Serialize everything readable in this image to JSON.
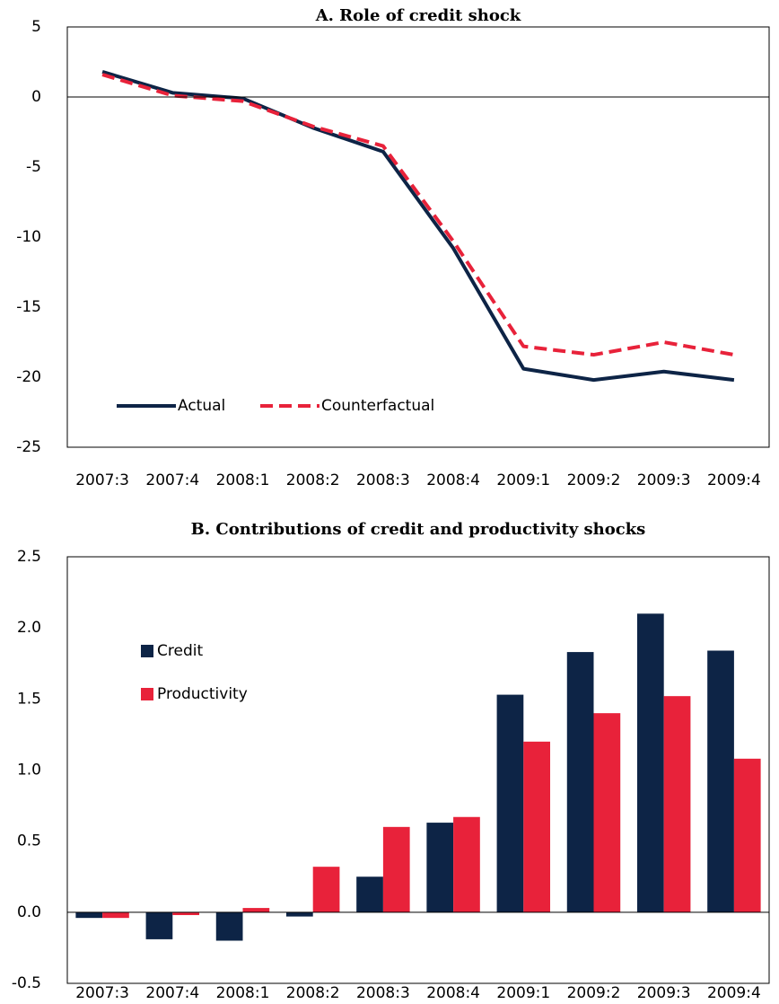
{
  "chart_data": [
    {
      "type": "line",
      "title": "A. Role of credit shock",
      "categories": [
        "2007:3",
        "2007:4",
        "2008:1",
        "2008:2",
        "2008:3",
        "2008:4",
        "2009:1",
        "2009:2",
        "2009:3",
        "2009:4"
      ],
      "series": [
        {
          "name": "Actual",
          "color": "#0d2446",
          "values": [
            1.8,
            0.3,
            -0.1,
            -2.2,
            -3.9,
            -10.8,
            -19.4,
            -20.2,
            -19.6,
            -20.2
          ]
        },
        {
          "name": "Counterfactual",
          "color": "#e8223a",
          "dashed": true,
          "values": [
            1.6,
            0.1,
            -0.3,
            -2.1,
            -3.5,
            -10.3,
            -17.8,
            -18.4,
            -17.5,
            -18.4
          ]
        }
      ],
      "ylim": [
        -25,
        5
      ],
      "yticks": [
        -25,
        -20,
        -15,
        -10,
        -5,
        0,
        5
      ],
      "grid": false,
      "legend": "lower left"
    },
    {
      "type": "bar",
      "title": "B. Contributions of credit and productivity shocks",
      "categories": [
        "2007:3",
        "2007:4",
        "2008:1",
        "2008:2",
        "2008:3",
        "2008:4",
        "2009:1",
        "2009:2",
        "2009:3",
        "2009:4"
      ],
      "series": [
        {
          "name": "Credit",
          "color": "#0d2446",
          "values": [
            -0.04,
            -0.19,
            -0.2,
            -0.03,
            0.25,
            0.63,
            1.53,
            1.83,
            2.1,
            1.84
          ]
        },
        {
          "name": "Productivity",
          "color": "#e8223a",
          "values": [
            -0.04,
            -0.02,
            0.03,
            0.32,
            0.6,
            0.67,
            1.2,
            1.4,
            1.52,
            1.08
          ]
        }
      ],
      "ylim": [
        -0.5,
        2.5
      ],
      "yticks": [
        -0.5,
        {
          "value": 0,
          "label": "0.0"
        },
        0.5,
        {
          "value": 1,
          "label": "1.0"
        },
        1.5,
        {
          "value": 2,
          "label": "2.0"
        },
        2.5
      ],
      "grid": false,
      "legend": "upper left"
    }
  ]
}
